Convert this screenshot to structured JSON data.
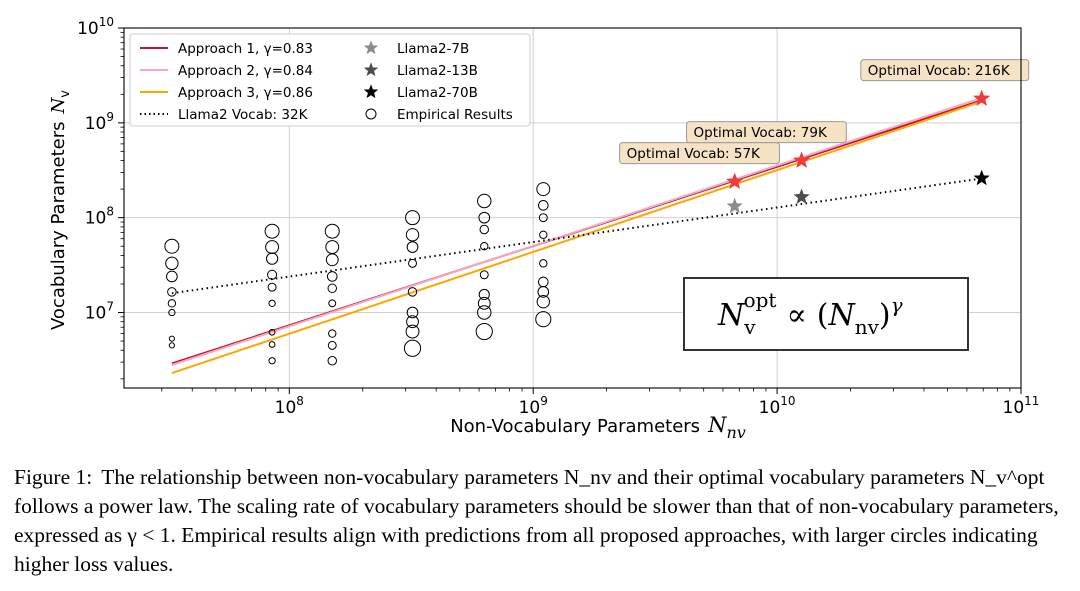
{
  "chart_data": {
    "type": "line",
    "xlabel": "Non-Vocabulary Parameters",
    "xlabel_symbol": "N",
    "xlabel_sub": "nv",
    "ylabel": "Vocabulary Parameters",
    "ylabel_symbol": "N",
    "ylabel_sub": "v",
    "xscale": "log",
    "yscale": "log",
    "xlim": [
      21000000.0,
      100000000000.0
    ],
    "ylim": [
      1600000.0,
      10000000000.0
    ],
    "grid": true,
    "x_ticks": [
      {
        "value": 100000000.0,
        "base": "10",
        "exp": "8"
      },
      {
        "value": 1000000000.0,
        "base": "10",
        "exp": "9"
      },
      {
        "value": 10000000000.0,
        "base": "10",
        "exp": "10"
      },
      {
        "value": 100000000000.0,
        "base": "10",
        "exp": "11"
      }
    ],
    "y_ticks": [
      {
        "value": 10000000.0,
        "base": "10",
        "exp": "7"
      },
      {
        "value": 100000000.0,
        "base": "10",
        "exp": "8"
      },
      {
        "value": 1000000000.0,
        "base": "10",
        "exp": "9"
      },
      {
        "value": 10000000000.0,
        "base": "10",
        "exp": "10"
      }
    ],
    "legend_position": "upper-left",
    "series": [
      {
        "name": "Approach 1, γ=0.83",
        "kind": "line",
        "color": "#c0143c",
        "x": [
          33000000.0,
          70000000000.0
        ],
        "y": [
          2900000.0,
          1750000000.0
        ]
      },
      {
        "name": "Approach 2, γ=0.84",
        "kind": "line",
        "color": "#f4a9bd",
        "x": [
          33000000.0,
          70000000000.0
        ],
        "y": [
          2800000.0,
          1850000000.0
        ]
      },
      {
        "name": "Approach 3, γ=0.86",
        "kind": "line",
        "color": "#ffa500",
        "x": [
          33000000.0,
          70000000000.0
        ],
        "y": [
          2300000.0,
          1700000000.0
        ]
      },
      {
        "name": "Llama2 Vocab: 32K",
        "kind": "dotted",
        "color": "#000000",
        "x": [
          33000000.0,
          70000000000.0
        ],
        "y": [
          16000000.0,
          260000000.0
        ]
      },
      {
        "name": "Llama2-7B",
        "kind": "star",
        "color": "#8c8c8c",
        "x": [
          6700000000.0
        ],
        "y": [
          132000000.0
        ]
      },
      {
        "name": "Llama2-13B",
        "kind": "star",
        "color": "#4d4d4d",
        "x": [
          12600000000.0
        ],
        "y": [
          165000000.0
        ]
      },
      {
        "name": "Llama2-70B",
        "kind": "star",
        "color": "#000000",
        "x": [
          69000000000.0
        ],
        "y": [
          260000000.0
        ]
      },
      {
        "name": "Empirical Results",
        "kind": "circles",
        "color": "#000000",
        "points": [
          {
            "x": 33000000.0,
            "y": 50000000.0,
            "s": 1.0
          },
          {
            "x": 33000000.0,
            "y": 33000000.0,
            "s": 0.85
          },
          {
            "x": 33000000.0,
            "y": 24000000.0,
            "s": 0.7
          },
          {
            "x": 33000000.0,
            "y": 16500000.0,
            "s": 0.5
          },
          {
            "x": 33000000.0,
            "y": 12500000.0,
            "s": 0.4
          },
          {
            "x": 33000000.0,
            "y": 10000000.0,
            "s": 0.3
          },
          {
            "x": 33000000.0,
            "y": 5300000.0,
            "s": 0.2
          },
          {
            "x": 33000000.0,
            "y": 4500000.0,
            "s": 0.2
          },
          {
            "x": 85000000.0,
            "y": 72000000.0,
            "s": 1.0
          },
          {
            "x": 85000000.0,
            "y": 49000000.0,
            "s": 0.9
          },
          {
            "x": 85000000.0,
            "y": 37000000.0,
            "s": 0.75
          },
          {
            "x": 85000000.0,
            "y": 25000000.0,
            "s": 0.55
          },
          {
            "x": 85000000.0,
            "y": 18500000.0,
            "s": 0.45
          },
          {
            "x": 85000000.0,
            "y": 12500000.0,
            "s": 0.3
          },
          {
            "x": 85000000.0,
            "y": 6200000.0,
            "s": 0.25
          },
          {
            "x": 85000000.0,
            "y": 4600000.0,
            "s": 0.25
          },
          {
            "x": 85000000.0,
            "y": 3100000.0,
            "s": 0.3
          },
          {
            "x": 150000000.0,
            "y": 72000000.0,
            "s": 1.0
          },
          {
            "x": 150000000.0,
            "y": 49000000.0,
            "s": 0.9
          },
          {
            "x": 150000000.0,
            "y": 36000000.0,
            "s": 0.8
          },
          {
            "x": 150000000.0,
            "y": 24000000.0,
            "s": 0.6
          },
          {
            "x": 150000000.0,
            "y": 18000000.0,
            "s": 0.5
          },
          {
            "x": 150000000.0,
            "y": 12500000.0,
            "s": 0.35
          },
          {
            "x": 150000000.0,
            "y": 6000000.0,
            "s": 0.4
          },
          {
            "x": 150000000.0,
            "y": 4500000.0,
            "s": 0.45
          },
          {
            "x": 150000000.0,
            "y": 3100000.0,
            "s": 0.5
          },
          {
            "x": 320000000.0,
            "y": 100000000.0,
            "s": 1.0
          },
          {
            "x": 320000000.0,
            "y": 66000000.0,
            "s": 0.85
          },
          {
            "x": 320000000.0,
            "y": 49000000.0,
            "s": 0.7
          },
          {
            "x": 320000000.0,
            "y": 33000000.0,
            "s": 0.45
          },
          {
            "x": 320000000.0,
            "y": 16500000.0,
            "s": 0.5
          },
          {
            "x": 320000000.0,
            "y": 10000000.0,
            "s": 0.7
          },
          {
            "x": 320000000.0,
            "y": 8000000.0,
            "s": 0.8
          },
          {
            "x": 320000000.0,
            "y": 6300000.0,
            "s": 0.9
          },
          {
            "x": 320000000.0,
            "y": 4200000.0,
            "s": 1.2
          },
          {
            "x": 630000000.0,
            "y": 150000000.0,
            "s": 0.95
          },
          {
            "x": 630000000.0,
            "y": 100000000.0,
            "s": 0.7
          },
          {
            "x": 630000000.0,
            "y": 75000000.0,
            "s": 0.5
          },
          {
            "x": 630000000.0,
            "y": 50000000.0,
            "s": 0.4
          },
          {
            "x": 630000000.0,
            "y": 25000000.0,
            "s": 0.45
          },
          {
            "x": 630000000.0,
            "y": 15500000.0,
            "s": 0.65
          },
          {
            "x": 630000000.0,
            "y": 12500000.0,
            "s": 0.8
          },
          {
            "x": 630000000.0,
            "y": 10000000.0,
            "s": 0.95
          },
          {
            "x": 630000000.0,
            "y": 6300000.0,
            "s": 1.2
          },
          {
            "x": 1100000000.0,
            "y": 200000000.0,
            "s": 0.9
          },
          {
            "x": 1100000000.0,
            "y": 135000000.0,
            "s": 0.6
          },
          {
            "x": 1100000000.0,
            "y": 100000000.0,
            "s": 0.45
          },
          {
            "x": 1100000000.0,
            "y": 66000000.0,
            "s": 0.4
          },
          {
            "x": 1100000000.0,
            "y": 33000000.0,
            "s": 0.4
          },
          {
            "x": 1100000000.0,
            "y": 21000000.0,
            "s": 0.6
          },
          {
            "x": 1100000000.0,
            "y": 16500000.0,
            "s": 0.7
          },
          {
            "x": 1100000000.0,
            "y": 13000000.0,
            "s": 0.85
          },
          {
            "x": 1100000000.0,
            "y": 8500000.0,
            "s": 1.1
          }
        ]
      }
    ],
    "optimal_points": [
      {
        "x": 6700000000.0,
        "y": 240000000.0,
        "label": "Optimal Vocab: 57K"
      },
      {
        "x": 12600000000.0,
        "y": 400000000.0,
        "label": "Optimal Vocab: 79K"
      },
      {
        "x": 69000000000.0,
        "y": 1800000000.0,
        "label": "Optimal Vocab: 216K"
      }
    ],
    "optimal_color": "#ee3b3b",
    "formula": {
      "lhs_symbol": "N",
      "lhs_sub": "v",
      "lhs_sup": "opt",
      "prop": "∝",
      "rhs_open": "(",
      "rhs_symbol": "N",
      "rhs_sub": "nv",
      "rhs_close": ")",
      "rhs_sup": "γ"
    }
  },
  "caption": {
    "label": "Figure 1:",
    "text": "The relationship between non-vocabulary parameters N_nv and their optimal vocabulary parameters N_v^opt follows a power law. The scaling rate of vocabulary parameters should be slower than that of non-vocabulary parameters, expressed as γ < 1. Empirical results align with predictions from all proposed approaches, with larger circles indicating higher loss values."
  }
}
